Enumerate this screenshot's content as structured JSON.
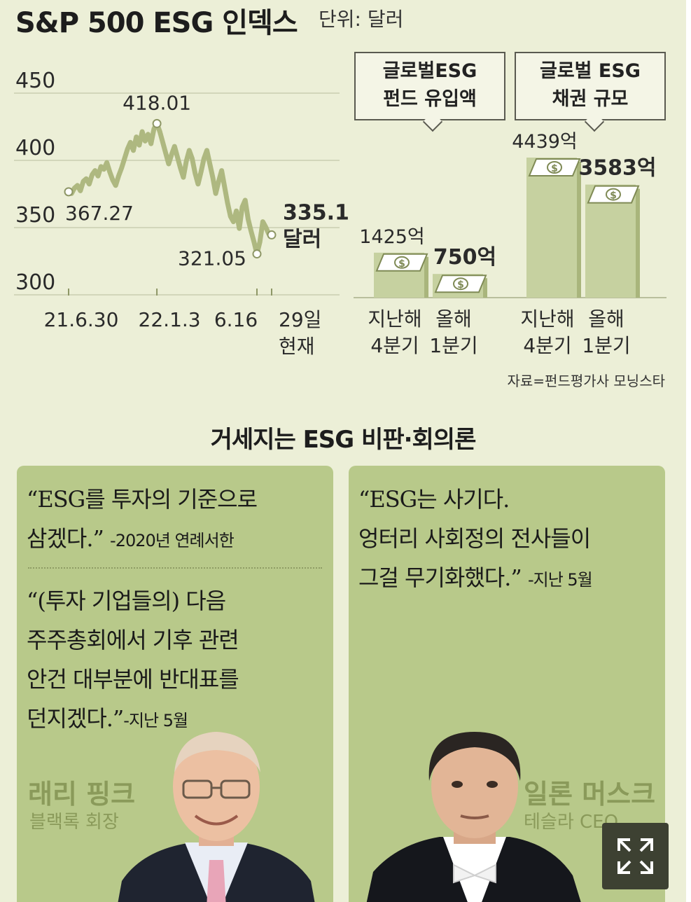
{
  "header": {
    "title": "S&P 500 ESG 인덱스",
    "unit": "단위: 달러"
  },
  "chart_data": [
    {
      "type": "line",
      "title": "S&P 500 ESG 인덱스",
      "ylim": [
        300,
        450
      ],
      "yticks": [
        "450",
        "400",
        "350",
        "300"
      ],
      "xticks": [
        "21.6.30",
        "22.1.3",
        "6.16",
        "29일 현재"
      ],
      "grid": true,
      "annotations": [
        {
          "label": "367.27",
          "date": "21.6.30",
          "value": 367.27
        },
        {
          "label": "418.01",
          "date": "22.1.3",
          "value": 418.01
        },
        {
          "label": "321.05",
          "date": "6.16",
          "value": 321.05
        },
        {
          "label": "335.19",
          "unit": "달러",
          "date": "29일 현재",
          "value": 335.19
        }
      ],
      "series_values": [
        367.27,
        366,
        370,
        372,
        368,
        375,
        377,
        373,
        380,
        383,
        379,
        386,
        384,
        389,
        382,
        376,
        372,
        379,
        385,
        392,
        399,
        404,
        398,
        408,
        402,
        412,
        405,
        410,
        403,
        414,
        418.01,
        412,
        404,
        396,
        388,
        395,
        401,
        393,
        385,
        378,
        390,
        398,
        392,
        381,
        373,
        382,
        392,
        398,
        388,
        378,
        366,
        375,
        383,
        371,
        359,
        349,
        345,
        353,
        340,
        356,
        361,
        347,
        338,
        330,
        321.05,
        330,
        345,
        341,
        336,
        335.19
      ]
    },
    {
      "type": "bar",
      "title": "글로벌ESG 펀드 유입액",
      "categories": [
        "지난해 4분기",
        "올해 1분기"
      ],
      "values": [
        1425,
        750
      ],
      "value_labels": [
        "1425억",
        "750억"
      ]
    },
    {
      "type": "bar",
      "title": "글로벌 ESG 채권 규모",
      "categories": [
        "지난해 4분기",
        "올해 1분기"
      ],
      "values": [
        4439,
        3583
      ],
      "value_labels": [
        "4439억",
        "3583억"
      ]
    }
  ],
  "callouts": {
    "fund": [
      "글로벌ESG",
      "펀드 유입액"
    ],
    "bond": [
      "글로벌 ESG",
      "채권 규모"
    ]
  },
  "bar_labels": [
    [
      "지난해",
      "4분기"
    ],
    [
      "올해",
      "1분기"
    ],
    [
      "지난해",
      "4분기"
    ],
    [
      "올해",
      "1분기"
    ]
  ],
  "source": "자료=펀드평가사 모닝스타",
  "section_title": "거세지는 ESG 비판·회의론",
  "left_card": {
    "quote1": "“ESG를 투자의 기준으로\n 삼겠다.”",
    "quote1_note": "-2020년 연례서한",
    "quote2": "“(투자 기업들의) 다음\n 주주총회에서 기후 관련\n 안건 대부분에 반대표를\n 던지겠다.”",
    "quote2_note": "-지난 5월",
    "name": "래리 핑크",
    "role": "블랙록 회장"
  },
  "right_card": {
    "quote": "“ESG는 사기다.\n 엉터리 사회정의 전사들이\n 그걸 무기화했다.”",
    "quote_note": "-지난 5월",
    "name": "일론 머스크",
    "role": "테슬라 CEO"
  },
  "colors": {
    "background": "#ecefd7",
    "line": "#aeb880",
    "card": "#b8c98a",
    "bar": "#c6d1a0"
  },
  "icons": [
    "dollar-bill-icon",
    "expand-icon"
  ]
}
